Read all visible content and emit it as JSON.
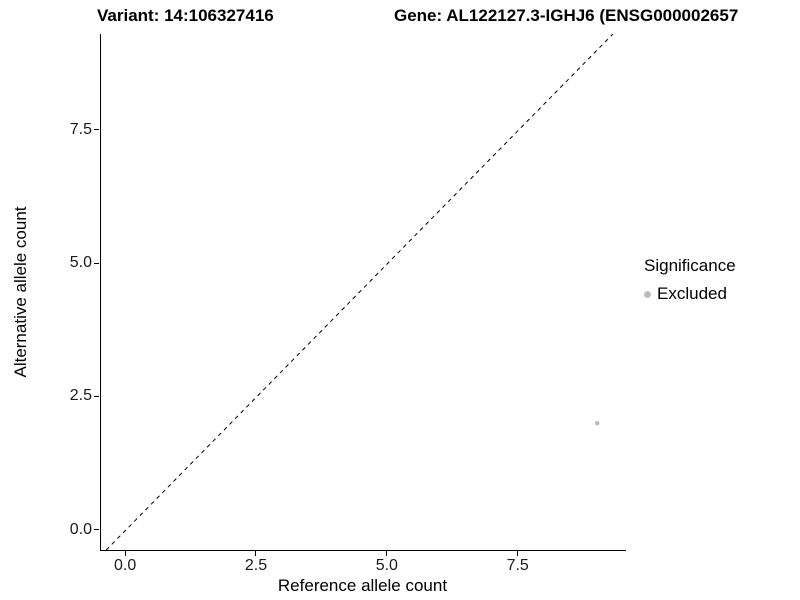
{
  "chart_data": {
    "type": "scatter",
    "title_left": "Variant: 14:106327416",
    "title_right": "Gene: AL122127.3-IGHJ6 (ENSG000002657",
    "xlabel": "Reference allele count",
    "ylabel": "Alternative allele count",
    "xlim": [
      -0.48,
      9.55
    ],
    "ylim": [
      -0.38,
      9.3
    ],
    "xticks": [
      {
        "value": 0.0,
        "label": "0.0"
      },
      {
        "value": 2.5,
        "label": "2.5"
      },
      {
        "value": 5.0,
        "label": "5.0"
      },
      {
        "value": 7.5,
        "label": "7.5"
      }
    ],
    "yticks": [
      {
        "value": 0.0,
        "label": "0.0"
      },
      {
        "value": 2.5,
        "label": "2.5"
      },
      {
        "value": 5.0,
        "label": "5.0"
      },
      {
        "value": 7.5,
        "label": "7.5"
      }
    ],
    "series": [
      {
        "name": "Excluded",
        "color": "#bdbdbd",
        "points": [
          {
            "x": 9,
            "y": 2
          }
        ]
      }
    ],
    "reference_line": {
      "type": "identity",
      "style": "dashed",
      "color": "#000000"
    },
    "legend": {
      "title": "Significance",
      "position": "right",
      "entries": [
        {
          "label": "Excluded",
          "color": "#bdbdbd"
        }
      ]
    },
    "grid": false,
    "background_color": "#ffffff",
    "axis_line_color": "#000000"
  }
}
